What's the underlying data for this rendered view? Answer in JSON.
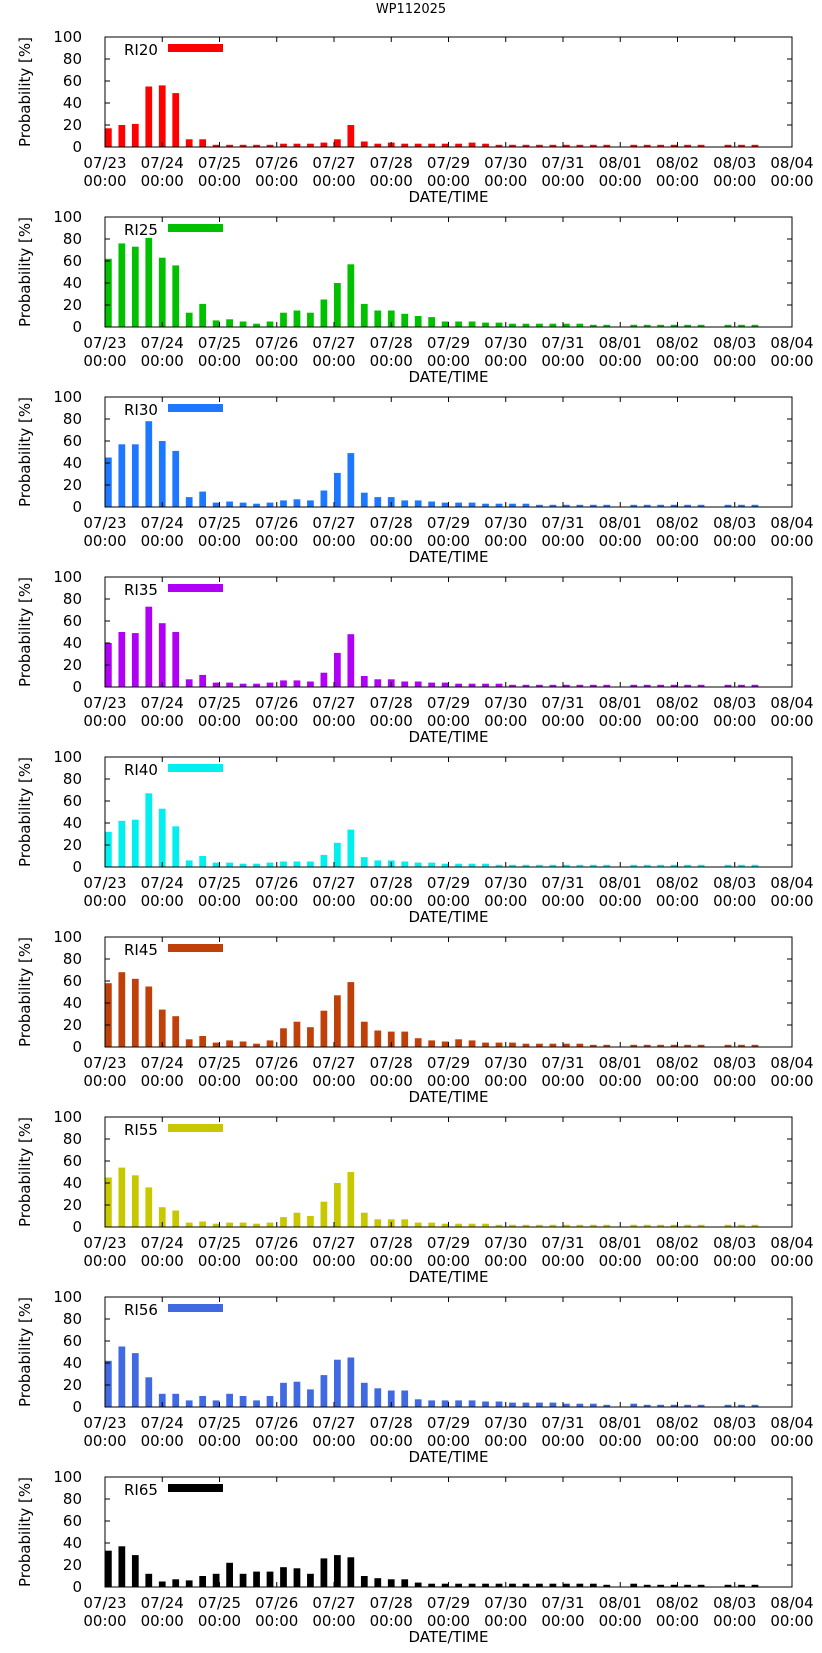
{
  "figure": {
    "title": "WP112025"
  },
  "chart_data": [
    {
      "type": "bar",
      "title": "RI20",
      "legend": "RI20",
      "color": "#ff0000",
      "xlabel": "DATE/TIME",
      "ylabel": "Probability [%]",
      "ylim": [
        0,
        100
      ],
      "yticks": [
        "0",
        "20",
        "40",
        "60",
        "80",
        "100"
      ],
      "xticks": [
        [
          "07/23",
          "00:00"
        ],
        [
          "07/24",
          "00:00"
        ],
        [
          "07/25",
          "00:00"
        ],
        [
          "07/26",
          "00:00"
        ],
        [
          "07/27",
          "00:00"
        ],
        [
          "07/28",
          "00:00"
        ],
        [
          "07/29",
          "00:00"
        ],
        [
          "07/30",
          "00:00"
        ],
        [
          "07/31",
          "00:00"
        ],
        [
          "08/01",
          "00:00"
        ],
        [
          "08/02",
          "00:00"
        ],
        [
          "08/03",
          "00:00"
        ],
        [
          "08/04",
          "00:00"
        ]
      ],
      "values": [
        17,
        20,
        21,
        55,
        56,
        49,
        7,
        7,
        2,
        2,
        2,
        2,
        2,
        3,
        3,
        3,
        4,
        7,
        20,
        5,
        3,
        4,
        3,
        3,
        3,
        3,
        3,
        4,
        3,
        2,
        2,
        2,
        2,
        2,
        2,
        2,
        2,
        2,
        null,
        2,
        2,
        2,
        2,
        2,
        2,
        null,
        2,
        2,
        2
      ]
    },
    {
      "type": "bar",
      "title": "RI25",
      "legend": "RI25",
      "color": "#00c000",
      "xlabel": "DATE/TIME",
      "ylabel": "Probability [%]",
      "ylim": [
        0,
        100
      ],
      "yticks": [
        "0",
        "20",
        "40",
        "60",
        "80",
        "100"
      ],
      "xticks": [
        [
          "07/23",
          "00:00"
        ],
        [
          "07/24",
          "00:00"
        ],
        [
          "07/25",
          "00:00"
        ],
        [
          "07/26",
          "00:00"
        ],
        [
          "07/27",
          "00:00"
        ],
        [
          "07/28",
          "00:00"
        ],
        [
          "07/29",
          "00:00"
        ],
        [
          "07/30",
          "00:00"
        ],
        [
          "07/31",
          "00:00"
        ],
        [
          "08/01",
          "00:00"
        ],
        [
          "08/02",
          "00:00"
        ],
        [
          "08/03",
          "00:00"
        ],
        [
          "08/04",
          "00:00"
        ]
      ],
      "values": [
        62,
        76,
        73,
        81,
        63,
        56,
        13,
        21,
        6,
        7,
        5,
        3,
        5,
        13,
        15,
        13,
        25,
        40,
        57,
        21,
        15,
        15,
        12,
        10,
        9,
        5,
        5,
        5,
        4,
        4,
        3,
        3,
        3,
        3,
        3,
        3,
        2,
        2,
        null,
        2,
        2,
        2,
        2,
        2,
        2,
        null,
        2,
        2,
        2
      ]
    },
    {
      "type": "bar",
      "title": "RI30",
      "legend": "RI30",
      "color": "#1e78ff",
      "xlabel": "DATE/TIME",
      "ylabel": "Probability [%]",
      "ylim": [
        0,
        100
      ],
      "yticks": [
        "0",
        "20",
        "40",
        "60",
        "80",
        "100"
      ],
      "xticks": [
        [
          "07/23",
          "00:00"
        ],
        [
          "07/24",
          "00:00"
        ],
        [
          "07/25",
          "00:00"
        ],
        [
          "07/26",
          "00:00"
        ],
        [
          "07/27",
          "00:00"
        ],
        [
          "07/28",
          "00:00"
        ],
        [
          "07/29",
          "00:00"
        ],
        [
          "07/30",
          "00:00"
        ],
        [
          "07/31",
          "00:00"
        ],
        [
          "08/01",
          "00:00"
        ],
        [
          "08/02",
          "00:00"
        ],
        [
          "08/03",
          "00:00"
        ],
        [
          "08/04",
          "00:00"
        ]
      ],
      "values": [
        45,
        57,
        57,
        78,
        60,
        51,
        9,
        14,
        4,
        5,
        4,
        3,
        4,
        6,
        7,
        6,
        15,
        31,
        49,
        13,
        9,
        9,
        6,
        6,
        5,
        4,
        4,
        4,
        3,
        3,
        3,
        3,
        2,
        2,
        2,
        2,
        2,
        2,
        null,
        2,
        2,
        2,
        2,
        2,
        2,
        null,
        2,
        2,
        2
      ]
    },
    {
      "type": "bar",
      "title": "RI35",
      "legend": "RI35",
      "color": "#b000f5",
      "xlabel": "DATE/TIME",
      "ylabel": "Probability [%]",
      "ylim": [
        0,
        100
      ],
      "yticks": [
        "0",
        "20",
        "40",
        "60",
        "80",
        "100"
      ],
      "xticks": [
        [
          "07/23",
          "00:00"
        ],
        [
          "07/24",
          "00:00"
        ],
        [
          "07/25",
          "00:00"
        ],
        [
          "07/26",
          "00:00"
        ],
        [
          "07/27",
          "00:00"
        ],
        [
          "07/28",
          "00:00"
        ],
        [
          "07/29",
          "00:00"
        ],
        [
          "07/30",
          "00:00"
        ],
        [
          "07/31",
          "00:00"
        ],
        [
          "08/01",
          "00:00"
        ],
        [
          "08/02",
          "00:00"
        ],
        [
          "08/03",
          "00:00"
        ],
        [
          "08/04",
          "00:00"
        ]
      ],
      "values": [
        40,
        50,
        49,
        73,
        58,
        50,
        7,
        11,
        4,
        4,
        3,
        3,
        4,
        6,
        6,
        5,
        13,
        31,
        48,
        10,
        7,
        7,
        5,
        5,
        4,
        4,
        3,
        3,
        3,
        3,
        2,
        2,
        2,
        2,
        2,
        2,
        2,
        2,
        null,
        2,
        2,
        2,
        2,
        2,
        2,
        null,
        2,
        2,
        2
      ]
    },
    {
      "type": "bar",
      "title": "RI40",
      "legend": "RI40",
      "color": "#00f0f0",
      "xlabel": "DATE/TIME",
      "ylabel": "Probability [%]",
      "ylim": [
        0,
        100
      ],
      "yticks": [
        "0",
        "20",
        "40",
        "60",
        "80",
        "100"
      ],
      "xticks": [
        [
          "07/23",
          "00:00"
        ],
        [
          "07/24",
          "00:00"
        ],
        [
          "07/25",
          "00:00"
        ],
        [
          "07/26",
          "00:00"
        ],
        [
          "07/27",
          "00:00"
        ],
        [
          "07/28",
          "00:00"
        ],
        [
          "07/29",
          "00:00"
        ],
        [
          "07/30",
          "00:00"
        ],
        [
          "07/31",
          "00:00"
        ],
        [
          "08/01",
          "00:00"
        ],
        [
          "08/02",
          "00:00"
        ],
        [
          "08/03",
          "00:00"
        ],
        [
          "08/04",
          "00:00"
        ]
      ],
      "values": [
        32,
        42,
        43,
        67,
        53,
        37,
        6,
        10,
        4,
        4,
        3,
        3,
        4,
        5,
        5,
        5,
        11,
        22,
        34,
        9,
        6,
        6,
        5,
        4,
        4,
        3,
        3,
        3,
        3,
        2,
        2,
        2,
        2,
        2,
        2,
        2,
        2,
        2,
        null,
        2,
        2,
        2,
        2,
        2,
        2,
        null,
        2,
        2,
        2
      ]
    },
    {
      "type": "bar",
      "title": "RI45",
      "legend": "RI45",
      "color": "#c0400a",
      "xlabel": "DATE/TIME",
      "ylabel": "Probability [%]",
      "ylim": [
        0,
        100
      ],
      "yticks": [
        "0",
        "20",
        "40",
        "60",
        "80",
        "100"
      ],
      "xticks": [
        [
          "07/23",
          "00:00"
        ],
        [
          "07/24",
          "00:00"
        ],
        [
          "07/25",
          "00:00"
        ],
        [
          "07/26",
          "00:00"
        ],
        [
          "07/27",
          "00:00"
        ],
        [
          "07/28",
          "00:00"
        ],
        [
          "07/29",
          "00:00"
        ],
        [
          "07/30",
          "00:00"
        ],
        [
          "07/31",
          "00:00"
        ],
        [
          "08/01",
          "00:00"
        ],
        [
          "08/02",
          "00:00"
        ],
        [
          "08/03",
          "00:00"
        ],
        [
          "08/04",
          "00:00"
        ]
      ],
      "values": [
        58,
        68,
        62,
        55,
        34,
        28,
        7,
        10,
        4,
        6,
        5,
        3,
        6,
        17,
        23,
        18,
        33,
        47,
        59,
        23,
        15,
        14,
        14,
        8,
        6,
        5,
        7,
        6,
        4,
        4,
        4,
        3,
        3,
        3,
        3,
        3,
        2,
        2,
        null,
        2,
        2,
        2,
        2,
        2,
        2,
        null,
        2,
        2,
        2
      ]
    },
    {
      "type": "bar",
      "title": "RI55",
      "legend": "RI55",
      "color": "#c8c800",
      "xlabel": "DATE/TIME",
      "ylabel": "Probability [%]",
      "ylim": [
        0,
        100
      ],
      "yticks": [
        "0",
        "20",
        "40",
        "60",
        "80",
        "100"
      ],
      "xticks": [
        [
          "07/23",
          "00:00"
        ],
        [
          "07/24",
          "00:00"
        ],
        [
          "07/25",
          "00:00"
        ],
        [
          "07/26",
          "00:00"
        ],
        [
          "07/27",
          "00:00"
        ],
        [
          "07/28",
          "00:00"
        ],
        [
          "07/29",
          "00:00"
        ],
        [
          "07/30",
          "00:00"
        ],
        [
          "07/31",
          "00:00"
        ],
        [
          "08/01",
          "00:00"
        ],
        [
          "08/02",
          "00:00"
        ],
        [
          "08/03",
          "00:00"
        ],
        [
          "08/04",
          "00:00"
        ]
      ],
      "values": [
        45,
        54,
        47,
        36,
        18,
        15,
        4,
        5,
        3,
        4,
        4,
        3,
        4,
        9,
        13,
        10,
        23,
        40,
        50,
        13,
        7,
        7,
        7,
        4,
        4,
        3,
        3,
        3,
        3,
        2,
        2,
        2,
        2,
        2,
        2,
        2,
        2,
        2,
        null,
        2,
        2,
        2,
        2,
        2,
        2,
        null,
        2,
        2,
        2
      ]
    },
    {
      "type": "bar",
      "title": "RI56",
      "legend": "RI56",
      "color": "#4169e1",
      "xlabel": "DATE/TIME",
      "ylabel": "Probability [%]",
      "ylim": [
        0,
        100
      ],
      "yticks": [
        "0",
        "20",
        "40",
        "60",
        "80",
        "100"
      ],
      "xticks": [
        [
          "07/23",
          "00:00"
        ],
        [
          "07/24",
          "00:00"
        ],
        [
          "07/25",
          "00:00"
        ],
        [
          "07/26",
          "00:00"
        ],
        [
          "07/27",
          "00:00"
        ],
        [
          "07/28",
          "00:00"
        ],
        [
          "07/29",
          "00:00"
        ],
        [
          "07/30",
          "00:00"
        ],
        [
          "07/31",
          "00:00"
        ],
        [
          "08/01",
          "00:00"
        ],
        [
          "08/02",
          "00:00"
        ],
        [
          "08/03",
          "00:00"
        ],
        [
          "08/04",
          "00:00"
        ]
      ],
      "values": [
        42,
        55,
        49,
        27,
        12,
        12,
        6,
        10,
        6,
        12,
        10,
        6,
        10,
        22,
        23,
        16,
        29,
        43,
        45,
        22,
        17,
        15,
        15,
        7,
        6,
        6,
        6,
        6,
        5,
        5,
        4,
        4,
        4,
        4,
        3,
        3,
        3,
        2,
        null,
        3,
        2,
        2,
        2,
        2,
        2,
        null,
        2,
        2,
        2
      ]
    },
    {
      "type": "bar",
      "title": "RI65",
      "legend": "RI65",
      "color": "#000000",
      "xlabel": "DATE/TIME",
      "ylabel": "Probability [%]",
      "ylim": [
        0,
        100
      ],
      "yticks": [
        "0",
        "20",
        "40",
        "60",
        "80",
        "100"
      ],
      "xticks": [
        [
          "07/23",
          "00:00"
        ],
        [
          "07/24",
          "00:00"
        ],
        [
          "07/25",
          "00:00"
        ],
        [
          "07/26",
          "00:00"
        ],
        [
          "07/27",
          "00:00"
        ],
        [
          "07/28",
          "00:00"
        ],
        [
          "07/29",
          "00:00"
        ],
        [
          "07/30",
          "00:00"
        ],
        [
          "07/31",
          "00:00"
        ],
        [
          "08/01",
          "00:00"
        ],
        [
          "08/02",
          "00:00"
        ],
        [
          "08/03",
          "00:00"
        ],
        [
          "08/04",
          "00:00"
        ]
      ],
      "values": [
        33,
        37,
        29,
        12,
        5,
        7,
        6,
        10,
        12,
        22,
        12,
        14,
        14,
        18,
        17,
        12,
        26,
        29,
        27,
        10,
        8,
        7,
        7,
        4,
        3,
        3,
        3,
        3,
        3,
        3,
        3,
        3,
        3,
        3,
        3,
        3,
        3,
        2,
        null,
        3,
        2,
        2,
        2,
        2,
        2,
        null,
        2,
        2,
        2
      ]
    }
  ]
}
